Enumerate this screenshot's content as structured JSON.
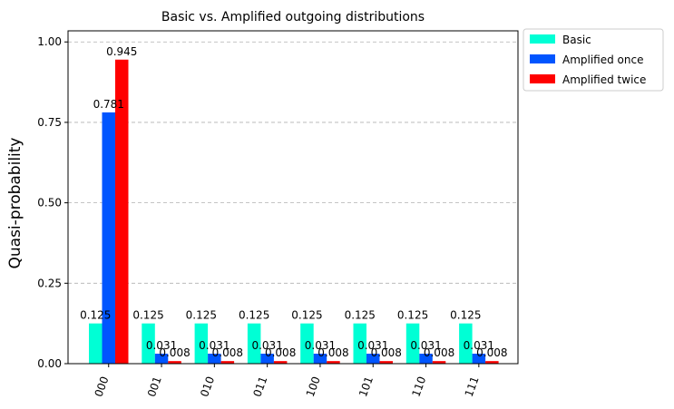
{
  "chart_data": {
    "type": "bar",
    "title": "Basic vs. Amplified outgoing distributions",
    "xlabel": "",
    "ylabel": "Quasi-probability",
    "categories": [
      "000",
      "001",
      "010",
      "011",
      "100",
      "101",
      "110",
      "111"
    ],
    "ylim": [
      0,
      1.0345
    ],
    "yticks": [
      0.0,
      0.25,
      0.5,
      0.75,
      1.0
    ],
    "ytick_labels": [
      "0.00",
      "0.25",
      "0.50",
      "0.75",
      "1.00"
    ],
    "grid": "y-dashed",
    "legend_position": "outside-top-right",
    "series": [
      {
        "name": "Basic",
        "color": "#00ffd5",
        "values": [
          0.125,
          0.125,
          0.125,
          0.125,
          0.125,
          0.125,
          0.125,
          0.125
        ],
        "labels": [
          "0.125",
          "0.125",
          "0.125",
          "0.125",
          "0.125",
          "0.125",
          "0.125",
          "0.125"
        ]
      },
      {
        "name": "Amplified once",
        "color": "#0055ff",
        "values": [
          0.781,
          0.031,
          0.031,
          0.031,
          0.031,
          0.031,
          0.031,
          0.031
        ],
        "labels": [
          "0.781",
          "0.031",
          "0.031",
          "0.031",
          "0.031",
          "0.031",
          "0.031",
          "0.031"
        ]
      },
      {
        "name": "Amplified twice",
        "color": "#ff0000",
        "values": [
          0.945,
          0.008,
          0.008,
          0.008,
          0.008,
          0.008,
          0.008,
          0.008
        ],
        "labels": [
          "0.945",
          "0.008",
          "0.008",
          "0.008",
          "0.008",
          "0.008",
          "0.008",
          "0.008"
        ]
      }
    ]
  }
}
